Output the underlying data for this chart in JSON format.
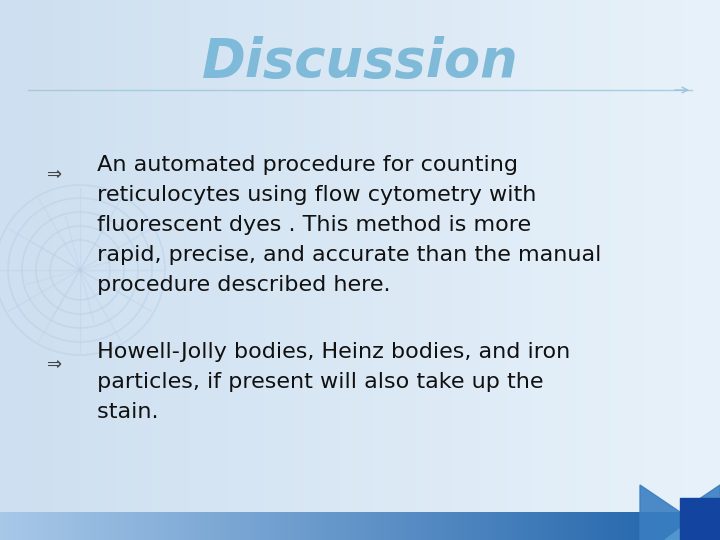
{
  "title": "Discussion",
  "title_color": "#7ab8d8",
  "title_fontsize": 38,
  "bg_color_left": "#cddff0",
  "bg_color_right": "#e8f2fa",
  "bullet1_lines": [
    " An automated procedure for counting",
    " reticulocytes using flow cytometry with",
    " fluorescent dyes . This method is more",
    " rapid, precise, and accurate than the manual",
    " procedure described here."
  ],
  "bullet2_lines": [
    " Howell-Jolly bodies, Heinz bodies, and iron",
    " particles, if present will also take up the",
    " stain."
  ],
  "bullet_color": "#111111",
  "bullet_fontsize": 16,
  "separator_color": "#9cc4dc",
  "bottom_bar_color_left": "#a8c8e8",
  "bottom_bar_color_right": "#1a5fa8",
  "watermark_color": "#b8cfe8",
  "arrow_color": "#6699bb"
}
